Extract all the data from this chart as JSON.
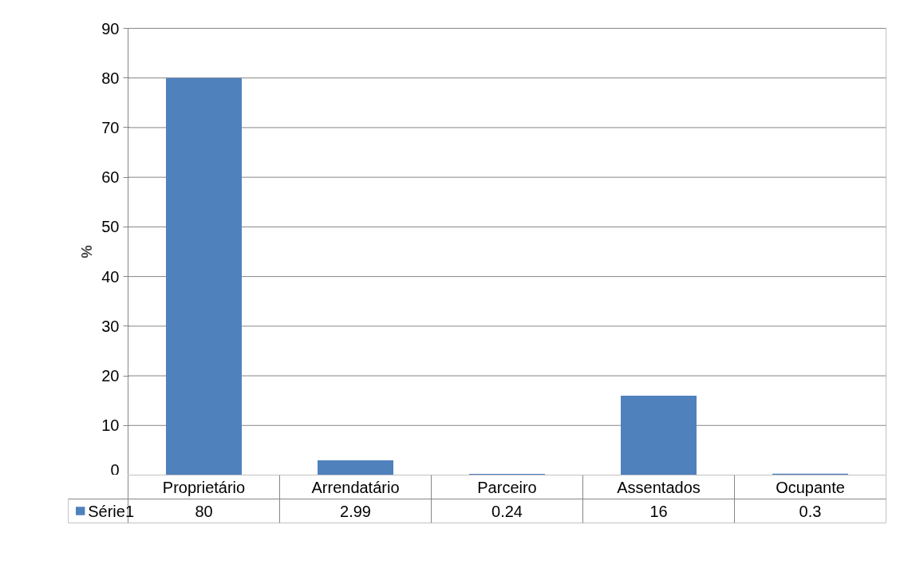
{
  "chart_data": {
    "type": "bar",
    "ylabel": "%",
    "categories": [
      "Proprietário",
      "Arrendatário",
      "Parceiro",
      "Assentados",
      "Ocupante"
    ],
    "series": [
      {
        "name": "Série1",
        "color": "#4f81bd",
        "values": [
          80,
          2.99,
          0.24,
          16,
          0.3
        ]
      }
    ],
    "ylim": [
      0,
      90
    ],
    "yticks": [
      0,
      10,
      20,
      30,
      40,
      50,
      60,
      70,
      80,
      90
    ],
    "grid": "y",
    "data_labels": true,
    "legend": "bottom left"
  }
}
